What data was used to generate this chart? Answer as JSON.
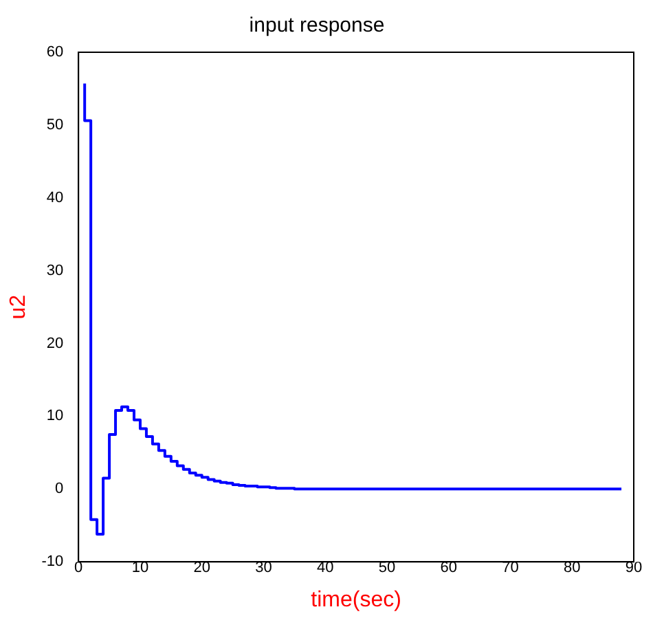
{
  "chart_data": {
    "type": "step",
    "title": "input response",
    "xlabel": "time(sec)",
    "ylabel": "u2",
    "x": [
      1,
      2,
      3,
      4,
      5,
      6,
      7,
      8,
      9,
      10,
      11,
      12,
      13,
      14,
      15,
      16,
      17,
      18,
      19,
      20,
      21,
      22,
      23,
      24,
      25,
      26,
      27,
      28,
      29,
      30,
      31,
      32,
      35,
      43,
      88
    ],
    "series": [
      {
        "color": "#0000ff",
        "values": [
          55.7,
          50.6,
          -4.2,
          -6.2,
          1.5,
          7.5,
          10.8,
          11.3,
          10.8,
          9.5,
          8.3,
          7.2,
          6.2,
          5.3,
          4.5,
          3.8,
          3.2,
          2.7,
          2.2,
          1.9,
          1.6,
          1.3,
          1.1,
          0.9,
          0.8,
          0.6,
          0.5,
          0.4,
          0.4,
          0.3,
          0.3,
          0.2,
          0.1,
          0,
          0
        ]
      }
    ],
    "xlim": [
      0,
      90
    ],
    "xticks": [
      0,
      10,
      20,
      30,
      40,
      50,
      60,
      70,
      80,
      90
    ],
    "ylim": [
      -10,
      60
    ],
    "yticks": [
      -10,
      0,
      10,
      20,
      30,
      40,
      50,
      60
    ],
    "grid": false,
    "legend": false
  }
}
